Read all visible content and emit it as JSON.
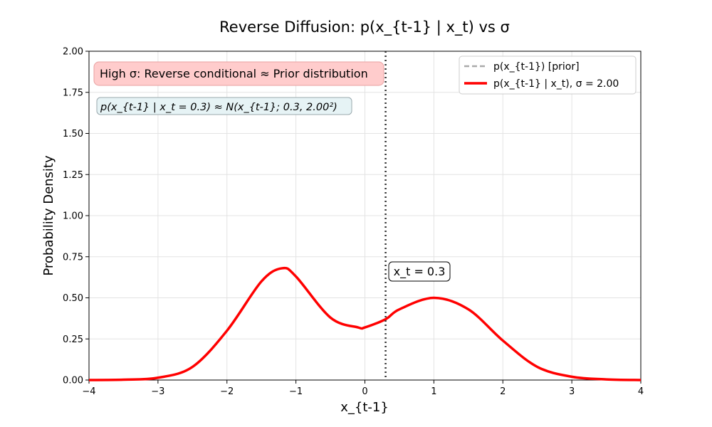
{
  "chart_data": {
    "type": "line",
    "title": "Reverse Diffusion: p(x_{t-1} | x_t) vs σ",
    "xlabel": "x_{t-1}",
    "ylabel": "Probability Density",
    "xlim": [
      -4,
      4
    ],
    "ylim": [
      0,
      2.0
    ],
    "x_ticks": [
      -4,
      -3,
      -2,
      -1,
      0,
      1,
      2,
      3,
      4
    ],
    "x_tick_labels": [
      "−4",
      "−3",
      "−2",
      "−1",
      "0",
      "1",
      "2",
      "3",
      "4"
    ],
    "y_ticks": [
      0,
      0.25,
      0.5,
      0.75,
      1.0,
      1.25,
      1.5,
      1.75,
      2.0
    ],
    "y_tick_labels": [
      "0.00",
      "0.25",
      "0.50",
      "0.75",
      "1.00",
      "1.25",
      "1.50",
      "1.75",
      "2.00"
    ],
    "grid": true,
    "legend_position": "top-right",
    "series": [
      {
        "name": "p(x_{t-1}) [prior]",
        "style": "dashed",
        "color": "#aaaaaa",
        "visible_line": false,
        "x": [
          -4.0,
          -3.5,
          -3.0,
          -2.5,
          -2.0,
          -1.5,
          -1.2,
          -1.0,
          -0.5,
          -0.1,
          0.0,
          0.3,
          0.5,
          1.0,
          1.5,
          2.0,
          2.5,
          3.0,
          3.5,
          4.0
        ],
        "y": [
          0.0,
          0.002,
          0.014,
          0.08,
          0.3,
          0.6,
          0.68,
          0.63,
          0.38,
          0.32,
          0.32,
          0.37,
          0.43,
          0.5,
          0.43,
          0.24,
          0.08,
          0.02,
          0.004,
          0.0
        ]
      },
      {
        "name": "p(x_{t-1} | x_t), σ = 2.00",
        "style": "solid",
        "color": "#ff0000",
        "x": [
          -4.0,
          -3.5,
          -3.0,
          -2.5,
          -2.0,
          -1.5,
          -1.2,
          -1.0,
          -0.5,
          -0.1,
          0.0,
          0.3,
          0.5,
          1.0,
          1.5,
          2.0,
          2.5,
          3.0,
          3.5,
          4.0
        ],
        "y": [
          0.0,
          0.002,
          0.014,
          0.08,
          0.3,
          0.6,
          0.68,
          0.63,
          0.38,
          0.32,
          0.32,
          0.37,
          0.43,
          0.5,
          0.43,
          0.24,
          0.08,
          0.02,
          0.004,
          0.0
        ]
      }
    ],
    "vline": {
      "x": 0.3,
      "style": "dotted",
      "color": "#333333",
      "label": "x_t = 0.3"
    },
    "annotations": {
      "high_sigma": "High σ: Reverse conditional ≈ Prior distribution",
      "formula": "p(x_{t-1} | x_t = 0.3) ≈ N(x_{t-1}; 0.3, 2.00²)"
    },
    "colors": {
      "high_sigma_box_fill": "#ffcccc",
      "high_sigma_box_stroke": "#e8a0a0",
      "formula_box_fill": "#e6f3f5",
      "formula_box_stroke": "#9aa8ad"
    }
  }
}
